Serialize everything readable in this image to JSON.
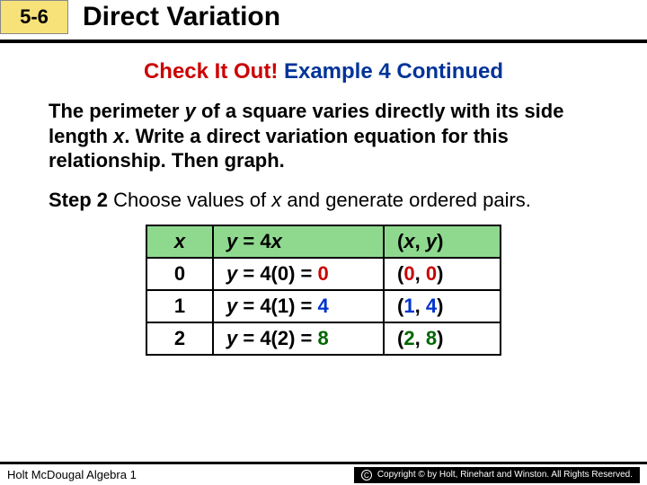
{
  "header": {
    "section_number": "5-6",
    "title": "Direct Variation"
  },
  "check_title": {
    "part1": "Check It Out!",
    "part2": " Example 4 Continued"
  },
  "problem": {
    "t1": "The perimeter ",
    "var1": "y",
    "t2": " of a square varies directly with its side length ",
    "var2": "x",
    "t3": ". Write a direct variation equation for this relationship. Then graph."
  },
  "step": {
    "label": "Step 2",
    "t1": " Choose values of ",
    "var1": "x",
    "t2": " and generate ordered pairs."
  },
  "table": {
    "head": {
      "c0": "x",
      "c1_y": "y",
      "c1_rest": " = 4",
      "c1_x": "x",
      "c2_open": "(",
      "c2_x": "x",
      "c2_mid": ", ",
      "c2_y": "y",
      "c2_close": ")"
    },
    "rows": [
      {
        "x": "0",
        "eq_y": "y",
        "eq_mid": " = 4(0) = ",
        "eq_res": "0",
        "pair_open": "(",
        "pair_a": "0",
        "pair_mid": ", ",
        "pair_b": "0",
        "pair_close": ")",
        "res_color": "#cc0000",
        "pair_color": "#cc0000"
      },
      {
        "x": "1",
        "eq_y": "y",
        "eq_mid": " = 4(1) = ",
        "eq_res": "4",
        "pair_open": "(",
        "pair_a": "1",
        "pair_mid": ", ",
        "pair_b": "4",
        "pair_close": ")",
        "res_color": "#0033cc",
        "pair_color": "#0033cc"
      },
      {
        "x": "2",
        "eq_y": "y",
        "eq_mid": " = 4(2) = ",
        "eq_res": "8",
        "pair_open": "(",
        "pair_a": "2",
        "pair_mid": ", ",
        "pair_b": "8",
        "pair_close": ")",
        "res_color": "#006600",
        "pair_color": "#006600"
      }
    ],
    "header_bg": "#8fd98f"
  },
  "footer": {
    "left": "Holt McDougal Algebra 1",
    "right": "Copyright © by Holt, Rinehart and Winston. All Rights Reserved."
  }
}
